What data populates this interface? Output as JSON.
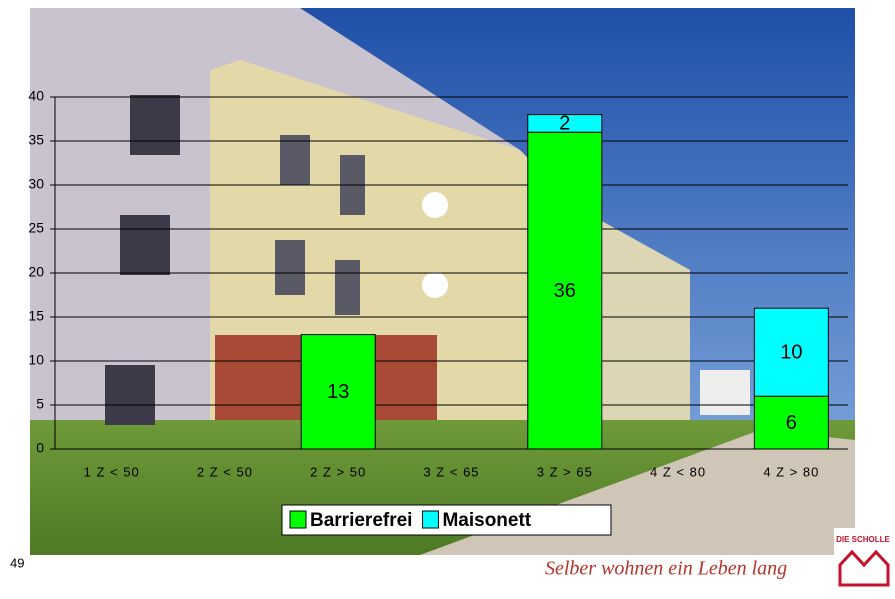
{
  "chart_data": {
    "type": "stacked_bar",
    "categories": [
      "1 Z < 50",
      "2 Z < 50",
      "2 Z > 50",
      "3 Z < 65",
      "3 Z > 65",
      "4 Z < 80",
      "4 Z > 80"
    ],
    "series": [
      {
        "name": "Barrierefrei",
        "color": "#00ff00",
        "values": [
          null,
          null,
          13,
          null,
          36,
          null,
          6
        ]
      },
      {
        "name": "Maisonett",
        "color": "#00ffff",
        "values": [
          null,
          null,
          null,
          null,
          2,
          null,
          10
        ]
      }
    ],
    "ylim": [
      0,
      40
    ],
    "yticks": [
      0,
      5,
      10,
      15,
      20,
      25,
      30,
      35,
      40
    ],
    "grid": true,
    "legend": "bottom"
  },
  "footer": {
    "page_number": "49",
    "slogan": "Selber wohnen ein Leben lang",
    "logo": "DIE SCHOLLE"
  }
}
